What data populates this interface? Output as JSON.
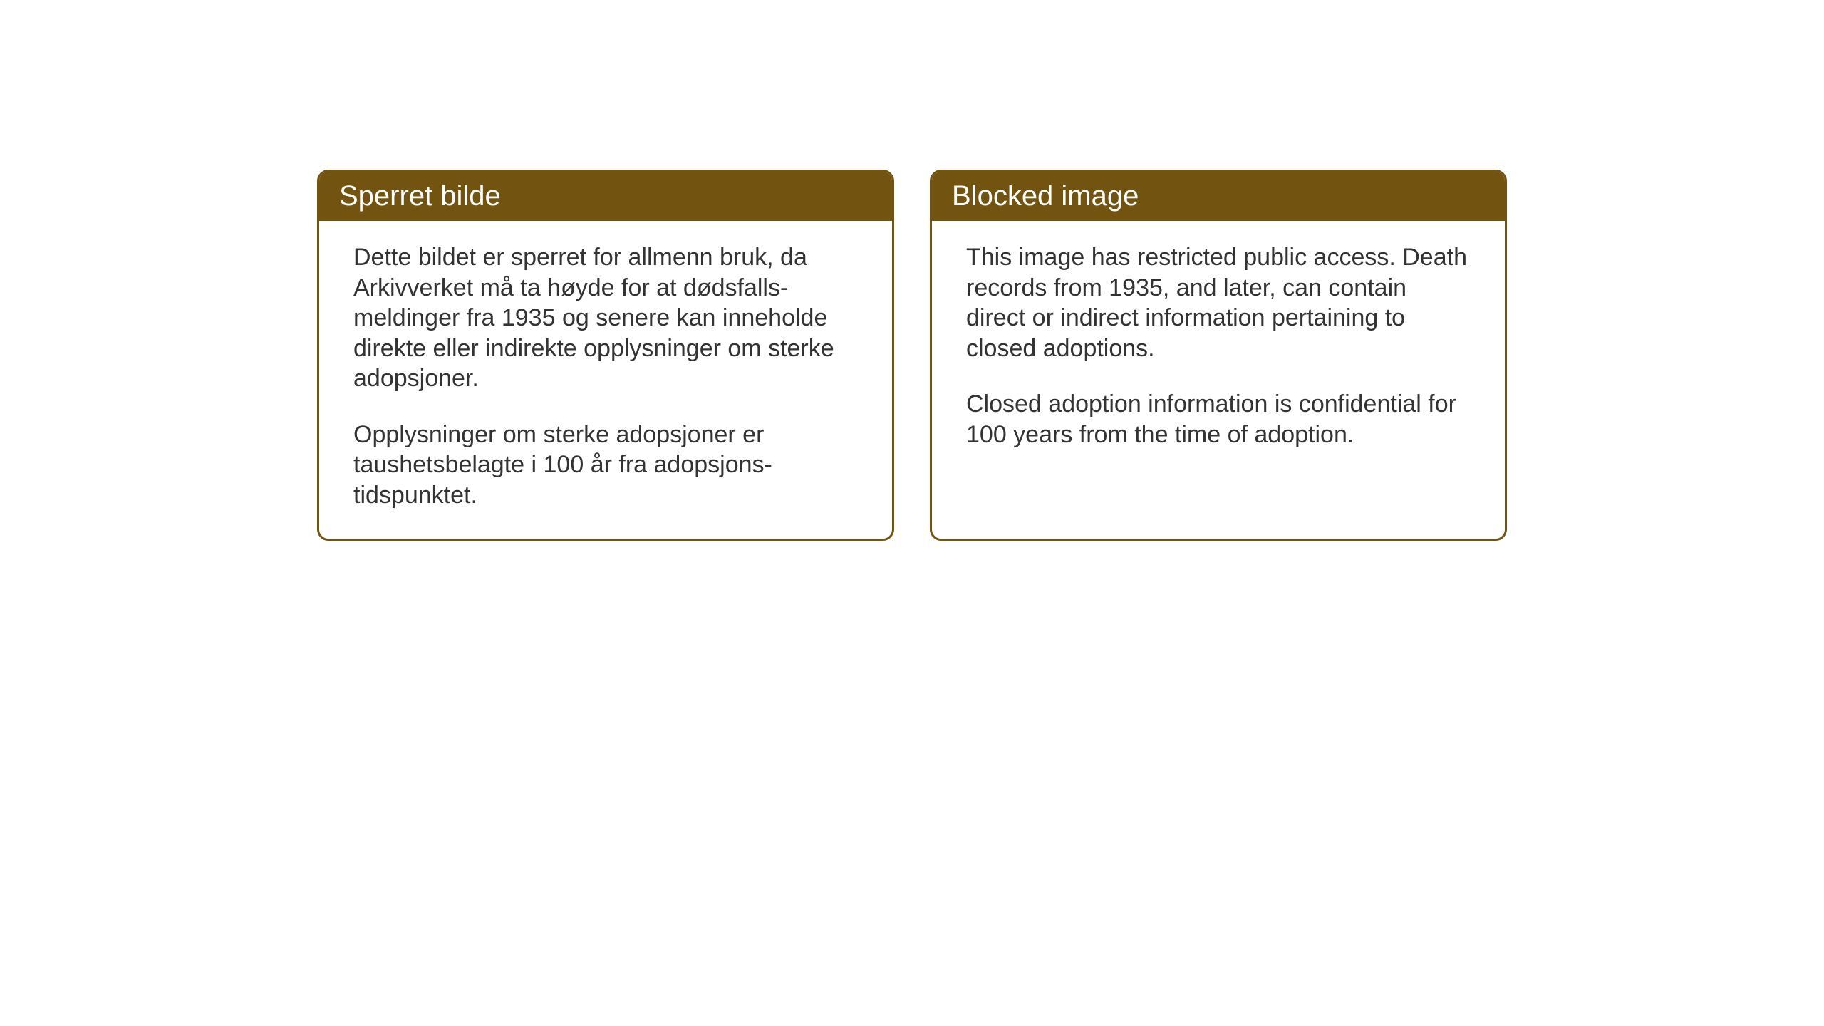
{
  "cards": {
    "norwegian": {
      "title": "Sperret bilde",
      "paragraph1": "Dette bildet er sperret for allmenn bruk, da Arkivverket må ta høyde for at dødsfalls-meldinger fra 1935 og senere kan inneholde direkte eller indirekte opplysninger om sterke adopsjoner.",
      "paragraph2": "Opplysninger om sterke adopsjoner er taushetsbelagte i 100 år fra adopsjons-tidspunktet."
    },
    "english": {
      "title": "Blocked image",
      "paragraph1": "This image has restricted public access. Death records from 1935, and later, can contain direct or indirect information pertaining to closed adoptions.",
      "paragraph2": "Closed adoption information is confidential for 100 years from the time of adoption."
    }
  },
  "styling": {
    "header_background_color": "#725310",
    "header_text_color": "#ffffff",
    "border_color": "#725310",
    "body_text_color": "#333333",
    "card_background_color": "#ffffff",
    "page_background_color": "#ffffff",
    "header_fontsize": 40,
    "body_fontsize": 34,
    "border_radius": 16,
    "border_width": 3
  }
}
